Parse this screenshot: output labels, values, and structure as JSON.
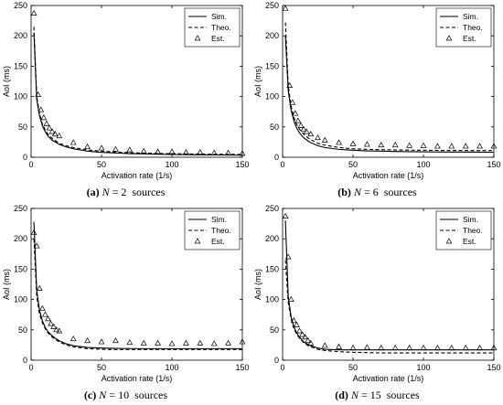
{
  "figure": {
    "panels": [
      {
        "caption": {
          "letter": "(a)",
          "n_label": "N",
          "eq": "=",
          "n_value": "2",
          "suffix": "sources"
        }
      },
      {
        "caption": {
          "letter": "(b)",
          "n_label": "N",
          "eq": "=",
          "n_value": "6",
          "suffix": "sources"
        }
      },
      {
        "caption": {
          "letter": "(c)",
          "n_label": "N",
          "eq": "=",
          "n_value": "10",
          "suffix": "sources"
        }
      },
      {
        "caption": {
          "letter": "(d)",
          "n_label": "N",
          "eq": "=",
          "n_value": "15",
          "suffix": "sources"
        }
      }
    ]
  },
  "chart_data": [
    {
      "type": "line",
      "xlabel": "Activation rate (1/s)",
      "ylabel": "AoI (ms)",
      "xlim": [
        0,
        150
      ],
      "ylim": [
        0,
        250
      ],
      "xticks": [
        0,
        50,
        100,
        150
      ],
      "yticks": [
        0,
        50,
        100,
        150,
        200,
        250
      ],
      "legend_position": "top-right",
      "series": [
        {
          "name": "Sim.",
          "style": "solid",
          "x": [
            2,
            4,
            6,
            8,
            10,
            12,
            15,
            18,
            20,
            25,
            30,
            40,
            50,
            60,
            70,
            80,
            90,
            100,
            110,
            120,
            130,
            140,
            150
          ],
          "y": [
            205,
            95,
            68,
            52,
            42,
            35,
            28,
            24,
            21,
            17,
            14,
            10,
            8,
            7,
            6,
            5.5,
            5,
            4.5,
            4.2,
            4,
            3.8,
            3.6,
            3.5
          ]
        },
        {
          "name": "Theo.",
          "style": "dashed",
          "x": [
            2,
            4,
            6,
            8,
            10,
            12,
            15,
            18,
            20,
            25,
            30,
            40,
            50,
            60,
            70,
            80,
            90,
            100,
            110,
            120,
            130,
            140,
            150
          ],
          "y": [
            215,
            100,
            72,
            55,
            45,
            38,
            31,
            26,
            23,
            19,
            16,
            12,
            10,
            8.5,
            7.5,
            6.8,
            6.2,
            5.8,
            5.5,
            5.2,
            5,
            4.8,
            4.6
          ]
        },
        {
          "name": "Est.",
          "style": "triangle",
          "x": [
            2,
            5,
            7,
            9,
            11,
            13,
            15,
            17,
            20,
            30,
            40,
            50,
            60,
            70,
            80,
            90,
            100,
            110,
            120,
            130,
            140,
            150
          ],
          "y": [
            237,
            103,
            78,
            65,
            55,
            48,
            42,
            38,
            35,
            24,
            17,
            15,
            13,
            12,
            10,
            9,
            9,
            8,
            8,
            7,
            7,
            6
          ]
        }
      ]
    },
    {
      "type": "line",
      "xlabel": "Activation rate (1/s)",
      "ylabel": "AoI (ms)",
      "xlim": [
        0,
        150
      ],
      "ylim": [
        0,
        250
      ],
      "xticks": [
        0,
        50,
        100,
        150
      ],
      "yticks": [
        0,
        50,
        100,
        150,
        200,
        250
      ],
      "legend_position": "top-right",
      "series": [
        {
          "name": "Sim.",
          "style": "solid",
          "x": [
            2,
            4,
            6,
            8,
            10,
            12,
            15,
            18,
            20,
            25,
            30,
            40,
            50,
            60,
            70,
            80,
            90,
            100,
            110,
            120,
            130,
            140,
            150
          ],
          "y": [
            200,
            110,
            78,
            60,
            48,
            40,
            32,
            27,
            24,
            19,
            16,
            13,
            11.5,
            10.5,
            10,
            9.5,
            9.2,
            9,
            8.8,
            8.6,
            8.5,
            8.4,
            8.3
          ]
        },
        {
          "name": "Theo.",
          "style": "dashed",
          "x": [
            2,
            4,
            6,
            8,
            10,
            12,
            15,
            18,
            20,
            25,
            30,
            40,
            50,
            60,
            70,
            80,
            90,
            100,
            110,
            120,
            130,
            140,
            150
          ],
          "y": [
            222,
            118,
            85,
            66,
            54,
            46,
            38,
            32,
            29,
            23,
            20,
            16,
            14,
            13,
            12.5,
            12,
            11.7,
            11.5,
            11.3,
            11.2,
            11.1,
            11,
            11
          ]
        },
        {
          "name": "Est.",
          "style": "triangle",
          "x": [
            2,
            5,
            7,
            9,
            11,
            13,
            15,
            17,
            20,
            25,
            30,
            40,
            50,
            60,
            70,
            80,
            90,
            100,
            110,
            120,
            130,
            140,
            150
          ],
          "y": [
            245,
            118,
            90,
            72,
            60,
            52,
            46,
            42,
            38,
            32,
            28,
            24,
            22,
            21,
            20,
            20,
            19,
            19,
            18,
            18,
            18,
            18,
            18
          ]
        }
      ]
    },
    {
      "type": "line",
      "xlabel": "Activation rate (1/s)",
      "ylabel": "AoI (ms)",
      "xlim": [
        0,
        150
      ],
      "ylim": [
        0,
        250
      ],
      "xticks": [
        0,
        50,
        100,
        150
      ],
      "yticks": [
        0,
        50,
        100,
        150,
        200,
        250
      ],
      "legend_position": "top-right",
      "series": [
        {
          "name": "Sim.",
          "style": "solid",
          "x": [
            2,
            4,
            6,
            8,
            10,
            12,
            15,
            18,
            20,
            25,
            30,
            40,
            50,
            60,
            70,
            80,
            90,
            100,
            110,
            120,
            130,
            140,
            150
          ],
          "y": [
            228,
            115,
            82,
            65,
            54,
            47,
            40,
            35,
            32,
            27,
            24,
            21,
            20,
            19.5,
            19.2,
            19,
            19,
            19,
            19,
            19,
            19,
            19,
            19
          ]
        },
        {
          "name": "Theo.",
          "style": "dashed",
          "x": [
            2,
            4,
            6,
            8,
            10,
            12,
            15,
            18,
            20,
            25,
            30,
            40,
            50,
            60,
            70,
            80,
            90,
            100,
            110,
            120,
            130,
            140,
            150
          ],
          "y": [
            200,
            105,
            76,
            62,
            52,
            45,
            38,
            33,
            30,
            25,
            22,
            19,
            18,
            17.5,
            17.5,
            17.5,
            17.5,
            17.5,
            17.5,
            17.5,
            17.5,
            17.5,
            17.5
          ]
        },
        {
          "name": "Est.",
          "style": "triangle",
          "x": [
            2,
            4,
            6,
            8,
            10,
            12,
            14,
            16,
            18,
            20,
            30,
            40,
            50,
            60,
            70,
            80,
            90,
            100,
            110,
            120,
            130,
            140,
            150
          ],
          "y": [
            210,
            188,
            118,
            85,
            75,
            68,
            60,
            55,
            50,
            48,
            35,
            32,
            30,
            32,
            29,
            28,
            28,
            27,
            28,
            28,
            27,
            28,
            30
          ]
        }
      ]
    },
    {
      "type": "line",
      "xlabel": "Activation rate (1/s)",
      "ylabel": "AoI (ms)",
      "xlim": [
        0,
        150
      ],
      "ylim": [
        0,
        250
      ],
      "xticks": [
        0,
        50,
        100,
        150
      ],
      "yticks": [
        0,
        50,
        100,
        150,
        200,
        250
      ],
      "legend_position": "top-right",
      "series": [
        {
          "name": "Sim.",
          "style": "solid",
          "x": [
            2,
            4,
            6,
            8,
            10,
            12,
            15,
            18,
            20,
            25,
            30,
            40,
            50,
            60,
            70,
            80,
            90,
            100,
            110,
            120,
            130,
            140,
            150
          ],
          "y": [
            230,
            105,
            72,
            55,
            45,
            38,
            30,
            26,
            24,
            20,
            18,
            17,
            17,
            17,
            17,
            17,
            17,
            17,
            17,
            17,
            17,
            17,
            17
          ]
        },
        {
          "name": "Theo.",
          "style": "dashed",
          "x": [
            2,
            4,
            6,
            8,
            10,
            12,
            15,
            18,
            20,
            25,
            30,
            40,
            50,
            60,
            70,
            80,
            90,
            100,
            110,
            120,
            130,
            140,
            150
          ],
          "y": [
            165,
            95,
            68,
            52,
            43,
            36,
            29,
            24,
            22,
            18,
            16,
            14,
            13,
            12.5,
            12,
            12,
            12,
            12,
            12,
            12,
            12,
            12,
            12
          ]
        },
        {
          "name": "Est.",
          "style": "triangle",
          "x": [
            2,
            4,
            6,
            8,
            10,
            12,
            14,
            16,
            18,
            20,
            30,
            40,
            50,
            60,
            70,
            80,
            90,
            100,
            110,
            120,
            130,
            140,
            150
          ],
          "y": [
            237,
            170,
            100,
            65,
            58,
            48,
            42,
            38,
            32,
            28,
            24,
            22,
            20,
            21,
            20,
            20,
            20,
            20,
            20,
            20,
            20,
            20,
            20
          ]
        }
      ]
    }
  ]
}
